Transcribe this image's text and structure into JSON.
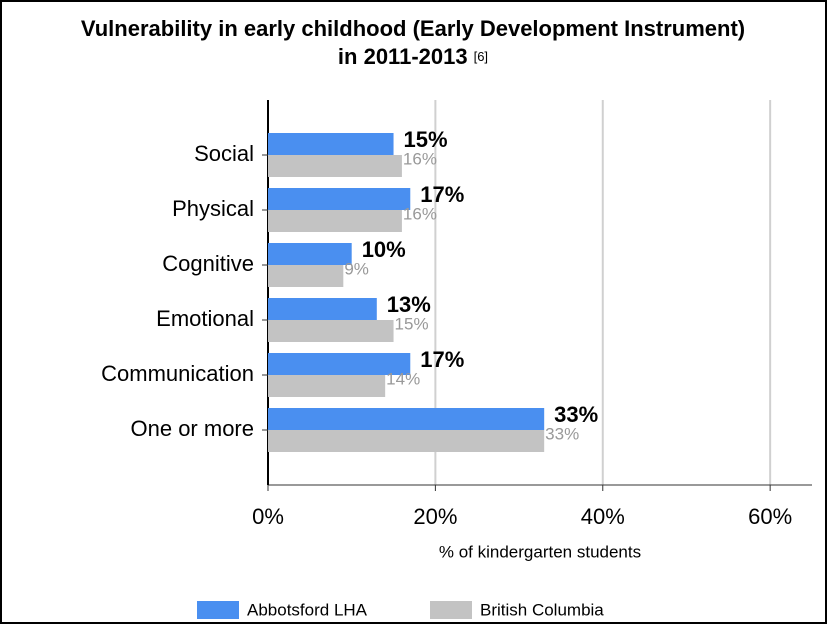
{
  "chart_data": {
    "type": "bar",
    "orientation": "horizontal",
    "title": "Vulnerability in early childhood (Early Development Instrument) in 2011-2013",
    "title_reference": "[6]",
    "xlabel": "% of kindergarten students",
    "categories": [
      "Social",
      "Physical",
      "Cognitive",
      "Emotional",
      "Communication",
      "One or more"
    ],
    "series": [
      {
        "name": "Abbotsford LHA",
        "color": "#4a8ff0",
        "values": [
          15,
          17,
          10,
          13,
          17,
          33
        ],
        "value_labels": [
          "15%",
          "17%",
          "10%",
          "13%",
          "17%",
          "33%"
        ]
      },
      {
        "name": "British Columbia",
        "color": "#c3c3c3",
        "values": [
          16,
          16,
          9,
          15,
          14,
          33
        ],
        "value_labels": [
          "16%",
          "16%",
          "9%",
          "15%",
          "14%",
          "33%"
        ]
      }
    ],
    "xlim": [
      0,
      65
    ],
    "xticks": [
      {
        "value": 0,
        "label": "0%"
      },
      {
        "value": 20,
        "label": "20%"
      },
      {
        "value": 40,
        "label": "40%"
      },
      {
        "value": 60,
        "label": "60%"
      }
    ],
    "grid": true,
    "legend": "bottom"
  }
}
